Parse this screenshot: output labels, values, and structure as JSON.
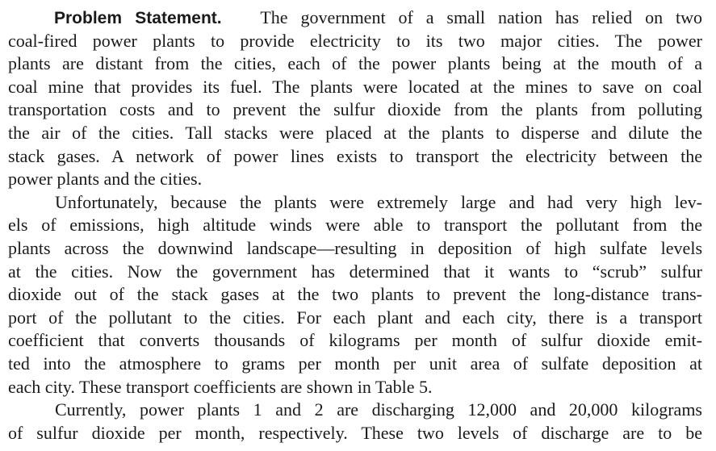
{
  "heading": "Problem Statement.",
  "paragraphs": [
    {
      "lines": [
        "The government of a small nation has relied on two",
        "coal-fired power plants to provide electricity to its two major cities. The power",
        "plants are distant from the cities, each of the power plants being at the mouth of a",
        "coal mine that provides its fuel. The plants were located at the mines to save on coal",
        "transportation costs and to prevent the sulfur dioxide from the plants from polluting",
        "the air of the cities. Tall stacks were placed at the plants to disperse and dilute the",
        "stack gases. A network of power lines exists to transport the electricity between the",
        "power plants and the cities."
      ]
    },
    {
      "lines": [
        "Unfortunately, because the plants were extremely large and had very high lev-",
        "els of emissions, high altitude winds were able to transport the pollutant from the",
        "plants across the downwind landscape—resulting in deposition of high sulfate levels",
        "at the cities. Now the government has determined that it wants to “scrub” sulfur",
        "dioxide out of the stack gases at the two plants to prevent the long-distance trans-",
        "port of the pollutant to the cities. For each plant and each city, there is a transport",
        "coefficient that converts thousands of kilograms per month of sulfur dioxide emit-",
        "ted into the atmosphere to grams per month per unit area of sulfate deposition at",
        "each city. These transport coefficients are shown in Table 5."
      ]
    },
    {
      "lines": [
        "Currently, power plants 1 and 2 are discharging 12,000 and 20,000 kilograms",
        "of sulfur dioxide per month, respectively. These two levels of discharge are to be"
      ]
    }
  ]
}
